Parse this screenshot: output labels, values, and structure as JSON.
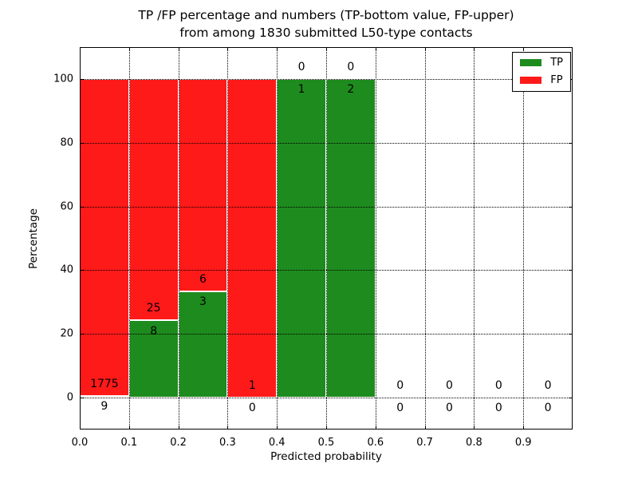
{
  "figure": {
    "title_line1": "TP /FP percentage and numbers (TP-bottom value, FP-upper)",
    "title_line2": "from among 1830 submitted L50-type contacts"
  },
  "axes": {
    "xlabel": "Predicted probability",
    "ylabel": "Percentage",
    "x_tick_labels": [
      "0.0",
      "0.1",
      "0.2",
      "0.3",
      "0.4",
      "0.5",
      "0.6",
      "0.7",
      "0.8",
      "0.9"
    ],
    "x_tick_values": [
      0,
      0.1,
      0.2,
      0.3,
      0.4,
      0.5,
      0.6,
      0.7,
      0.8,
      0.9
    ],
    "y_tick_labels": [
      "0",
      "20",
      "40",
      "60",
      "80",
      "100"
    ],
    "y_tick_values": [
      0,
      20,
      40,
      60,
      80,
      100
    ],
    "xlim": [
      0,
      1.0
    ],
    "ylim": [
      -10,
      110
    ],
    "grid": "dotted"
  },
  "legend": {
    "position": "upper right",
    "items": [
      {
        "label": "TP",
        "color": "#1e8b1e"
      },
      {
        "label": "FP",
        "color": "#ff1a1a"
      }
    ]
  },
  "chart_data": {
    "type": "bar",
    "stacked": true,
    "title": "TP /FP percentage and numbers (TP-bottom value, FP-upper) from among 1830 submitted L50-type contacts",
    "xlabel": "Predicted probability",
    "ylabel": "Percentage",
    "xlim": [
      0,
      1.0
    ],
    "ylim": [
      -10,
      110
    ],
    "grid": true,
    "legend_position": "upper right",
    "total_contacts": 1830,
    "bin_width": 0.1,
    "colors": {
      "tp": "#1e8b1e",
      "fp": "#ff1a1a"
    },
    "label_convention": "TP count below green top, FP count above green top",
    "bins": [
      {
        "x_start": 0.0,
        "x_end": 0.1,
        "tp_count": 9,
        "fp_count": 1775,
        "tp_pct": 0.5,
        "fp_pct": 99.5
      },
      {
        "x_start": 0.1,
        "x_end": 0.2,
        "tp_count": 8,
        "fp_count": 25,
        "tp_pct": 24.2,
        "fp_pct": 75.8
      },
      {
        "x_start": 0.2,
        "x_end": 0.3,
        "tp_count": 3,
        "fp_count": 6,
        "tp_pct": 33.3,
        "fp_pct": 66.7
      },
      {
        "x_start": 0.3,
        "x_end": 0.4,
        "tp_count": 0,
        "fp_count": 1,
        "tp_pct": 0.0,
        "fp_pct": 100.0
      },
      {
        "x_start": 0.4,
        "x_end": 0.5,
        "tp_count": 1,
        "fp_count": 0,
        "tp_pct": 100.0,
        "fp_pct": 0.0
      },
      {
        "x_start": 0.5,
        "x_end": 0.6,
        "tp_count": 2,
        "fp_count": 0,
        "tp_pct": 100.0,
        "fp_pct": 0.0
      },
      {
        "x_start": 0.6,
        "x_end": 0.7,
        "tp_count": 0,
        "fp_count": 0,
        "tp_pct": null,
        "fp_pct": null
      },
      {
        "x_start": 0.7,
        "x_end": 0.8,
        "tp_count": 0,
        "fp_count": 0,
        "tp_pct": null,
        "fp_pct": null
      },
      {
        "x_start": 0.8,
        "x_end": 0.9,
        "tp_count": 0,
        "fp_count": 0,
        "tp_pct": null,
        "fp_pct": null
      },
      {
        "x_start": 0.9,
        "x_end": 1.0,
        "tp_count": 0,
        "fp_count": 0,
        "tp_pct": null,
        "fp_pct": null
      }
    ]
  }
}
